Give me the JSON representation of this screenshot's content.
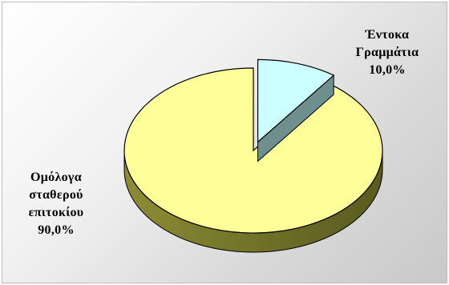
{
  "chart_data": {
    "type": "pie",
    "style": "3d-exploded",
    "slices": [
      {
        "label_lines": [
          "Έντοκα",
          "Γραμμάτια"
        ],
        "percent_label": "10,0%",
        "value": 10.0,
        "color": "#ccffff",
        "side_color": "#6f8f8f",
        "exploded": true
      },
      {
        "label_lines": [
          "Ομόλογα",
          "σταθερού",
          "επιτοκίου"
        ],
        "percent_label": "90,0%",
        "value": 90.0,
        "color": "#ffff99",
        "side_color": "#8a8a30",
        "exploded": false
      }
    ],
    "background": "gray-gradient"
  }
}
